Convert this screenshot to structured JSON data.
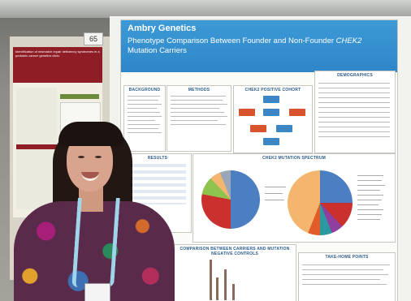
{
  "scene": {
    "booth_number": "65"
  },
  "left_poster": {
    "title_text": "Identification of mismatch repair deficiency syndromes in a pediatric cancer genetics clinic"
  },
  "poster": {
    "brand": "Ambry Genetics",
    "title_main": "Phenotype Comparison Between Founder and Non-Founder ",
    "title_gene": "CHEK2",
    "title_sub": "Mutation Carriers",
    "sections": {
      "background": "BACKGROUND",
      "methods": "METHODS",
      "cohort": "CHEK2 POSITIVE COHORT",
      "demographics": "DEMOGRAPHICS",
      "results": "RESULTS",
      "spectrum": "CHEK2 MUTATION SPECTRUM",
      "comparison": "COMPARISON BETWEEN CARRIERS AND MUTATION NEGATIVE CONTROLS",
      "takehome": "TAKE-HOME POINTS"
    }
  },
  "colors": {
    "header_blue": "#3b97d4",
    "pie_blue": "#4b7fc2",
    "pie_red": "#c9302e",
    "pie_green": "#8ec34e",
    "pie_peach": "#f4b66e"
  }
}
